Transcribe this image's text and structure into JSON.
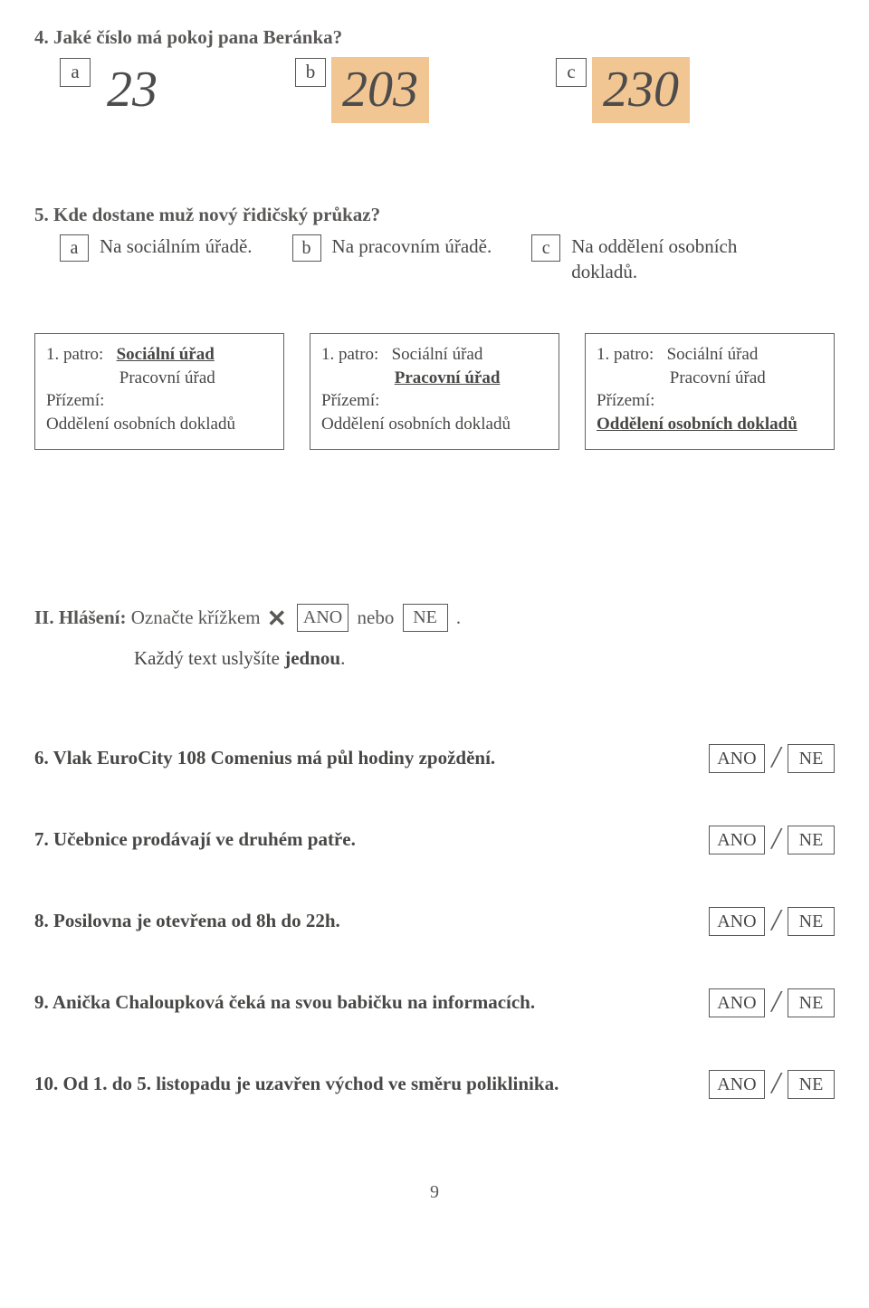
{
  "colors": {
    "text": "#474746",
    "box_border": "#595857",
    "highlight_bg": "#f1c693",
    "background": "#ffffff"
  },
  "typography": {
    "body_font": "Times New Roman",
    "body_size_pt": 16,
    "big_number_font": "Georgia italic",
    "big_number_size_pt": 42
  },
  "q4": {
    "prompt": "4. Jaké číslo má pokoj pana Beránka?",
    "options": [
      {
        "letter": "a",
        "value": "23",
        "highlighted": false
      },
      {
        "letter": "b",
        "value": "203",
        "highlighted": true
      },
      {
        "letter": "c",
        "value": "230",
        "highlighted": true
      }
    ]
  },
  "q5": {
    "prompt": "5. Kde dostane muž nový řidičský průkaz?",
    "options": [
      {
        "letter": "a",
        "text": "Na sociálním úřadě."
      },
      {
        "letter": "b",
        "text": "Na pracovním úřadě."
      },
      {
        "letter": "c",
        "text": "Na oddělení osobních dokladů."
      }
    ]
  },
  "cards": [
    {
      "lines": [
        {
          "text": "1. patro:   ",
          "append_bold_u": "Sociální úřad"
        },
        {
          "text": "                 Pracovní úřad"
        },
        {
          "text": "Přízemí:"
        },
        {
          "text": "Oddělení osobních dokladů"
        }
      ]
    },
    {
      "lines": [
        {
          "text": "1. patro:   Sociální úřad"
        },
        {
          "text": "                 ",
          "append_bold_u": "Pracovní úřad"
        },
        {
          "text": "Přízemí:"
        },
        {
          "text": "Oddělení osobních dokladů"
        }
      ]
    },
    {
      "lines": [
        {
          "text": "1. patro:   Sociální úřad"
        },
        {
          "text": "                 Pracovní úřad"
        },
        {
          "text": "Přízemí:"
        },
        {
          "append_bold_u": "Oddělení osobních dokladů"
        }
      ]
    }
  ],
  "section2": {
    "title": "II. Hlášení:",
    "instr_a": " Označte křížkem ",
    "x_symbol": "✕",
    "box_ano": "ANO",
    "mid": " nebo ",
    "box_ne": "NE",
    "tail": " .",
    "sub": "Každý text uslyšíte ",
    "sub_bold": "jednou",
    "sub_tail": "."
  },
  "yn": {
    "ano": "ANO",
    "ne": "NE",
    "items": [
      "6. Vlak EuroCity 108 Comenius má půl hodiny zpoždění.",
      "7. Učebnice prodávají ve druhém patře.",
      "8. Posilovna je otevřena od 8h do 22h.",
      "9. Anička Chaloupková čeká na svou babičku na informacích.",
      "10. Od 1. do 5. listopadu je uzavřen východ ve směru poliklinika."
    ]
  },
  "page_number": "9"
}
